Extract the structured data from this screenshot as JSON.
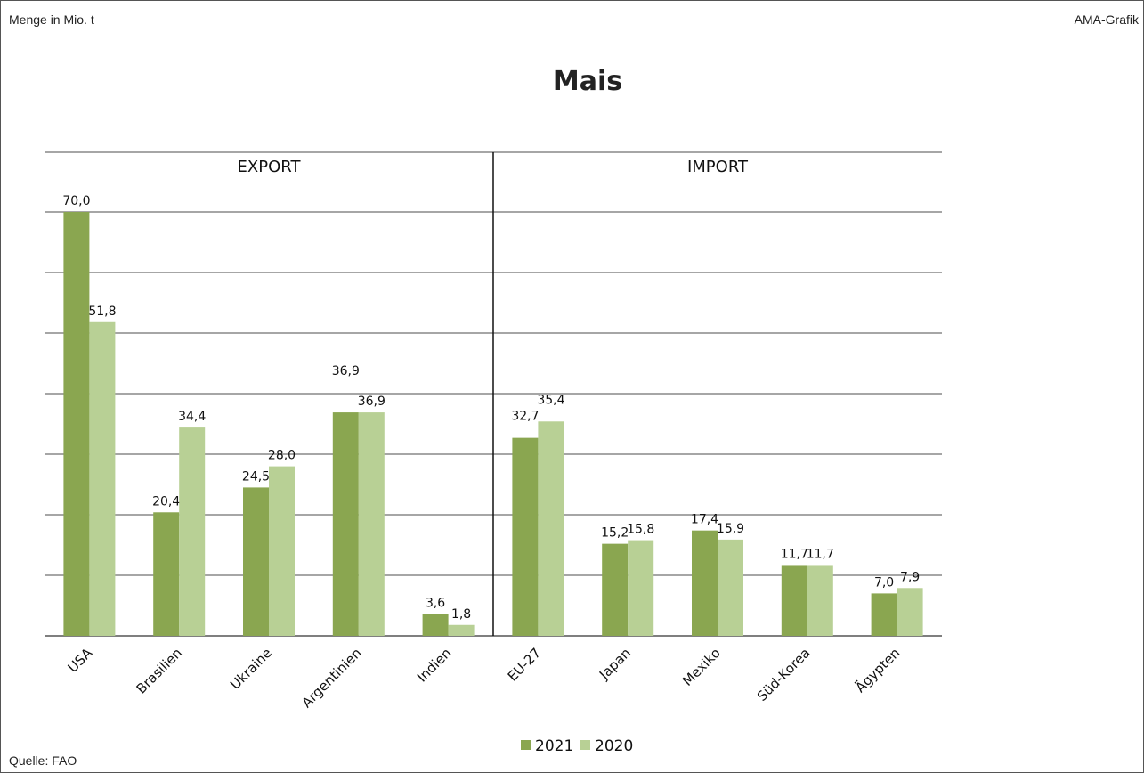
{
  "header": {
    "unit_label": "Menge  in Mio. t",
    "brand": "AMA-Grafik"
  },
  "footer": {
    "source": "Quelle:  FAO"
  },
  "chart_data": {
    "type": "bar",
    "title": "Mais",
    "sections": [
      {
        "label": "EXPORT",
        "categories": [
          "USA",
          "Brasilien",
          "Ukraine",
          "Argentinien",
          "Indien"
        ]
      },
      {
        "label": "IMPORT",
        "categories": [
          "EU-27",
          "Japan",
          "Mexiko",
          "Süd-Korea",
          "Ägypten"
        ]
      }
    ],
    "categories": [
      "USA",
      "Brasilien",
      "Ukraine",
      "Argentinien",
      "Indien",
      "EU-27",
      "Japan",
      "Mexiko",
      "Süd-Korea",
      "Ägypten"
    ],
    "series": [
      {
        "name": "2021",
        "color": "#8aa650",
        "values": [
          70.0,
          20.4,
          24.5,
          36.9,
          3.6,
          32.7,
          15.2,
          17.4,
          11.7,
          7.0
        ],
        "labels": [
          "70,0",
          "20,4",
          "24,5",
          "36,9",
          "3,6",
          "32,7",
          "15,2",
          "17,4",
          "11,7",
          "7,0"
        ]
      },
      {
        "name": "2020",
        "color": "#b8d095",
        "values": [
          51.8,
          34.4,
          28.0,
          36.9,
          1.8,
          35.4,
          15.8,
          15.9,
          11.7,
          7.9
        ],
        "labels": [
          "51,8",
          "34,4",
          "28,0",
          "36,9",
          "1,8",
          "35,4",
          "15,8",
          "15,9",
          "11,7",
          "7,9"
        ]
      }
    ],
    "ylim": [
      0,
      70
    ],
    "gridlines": true,
    "y_tick_labels": false,
    "legend_position": "bottom-center",
    "gridline_color": "#4d4d4d"
  }
}
